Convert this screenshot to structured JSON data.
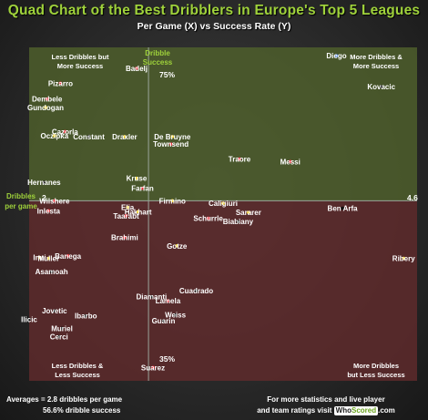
{
  "header": {
    "title": "Quad Chart of the Best Dribblers in Europe's Top 5 Leagues",
    "subtitle": "Per Game (X) vs Success Rate (Y)"
  },
  "quadrants": {
    "top_left": [
      "Less Dribbles but",
      "More Success"
    ],
    "top_right": [
      "More Dribbles &",
      "More Success"
    ],
    "bottom_left": [
      "Less Dribbles &",
      "Less Success"
    ],
    "bottom_right": [
      "More Dribbles",
      "but Less Success"
    ]
  },
  "axes": {
    "y_label": [
      "Dribble",
      "Success"
    ],
    "x_label": [
      "Dribbles",
      "per game"
    ],
    "y_max_label": "75%",
    "y_min_label": "35%",
    "x_min_label": "2",
    "x_max_label": "4.6"
  },
  "footer": {
    "averages_line1": "Averages = 2.8 dribbles per game",
    "averages_line2": "56.6% dribble success",
    "promo_line1": "For more statistics and live player",
    "promo_line2": "and team ratings visit",
    "brand_who": "Who",
    "brand_scored": "Scored",
    "brand_tld": ".com"
  },
  "colors": {
    "top_quadrant": "#4e5e2c",
    "bottom_quadrant": "#5e2a2c",
    "accent_green": "#9fd23b",
    "point_red": "#e8303a",
    "point_yellow": "#f3d22a",
    "point_blue": "#3c78e0",
    "point_black": "#111111"
  },
  "chart_data": {
    "type": "scatter",
    "title": "Quad Chart of the Best Dribblers in Europe's Top 5 Leagues",
    "subtitle": "Per Game (X) vs Success Rate (Y)",
    "xlabel": "Dribbles per game",
    "ylabel": "Dribble Success",
    "xlim": [
      2,
      4.6
    ],
    "ylim": [
      35,
      75
    ],
    "average_x": 2.8,
    "average_y": 56.6,
    "points": [
      {
        "name": "Badelj",
        "x": 2.72,
        "y": 72.5,
        "color": "point_red"
      },
      {
        "name": "Diego",
        "x": 4.06,
        "y": 74.0,
        "color": "point_blue"
      },
      {
        "name": "Kovacic",
        "x": 4.36,
        "y": 70.3,
        "color": "point_black"
      },
      {
        "name": "Pizarro",
        "x": 2.21,
        "y": 70.7,
        "color": "point_red"
      },
      {
        "name": "Dembele",
        "x": 2.12,
        "y": 68.8,
        "color": "point_red"
      },
      {
        "name": "Gundogan",
        "x": 2.11,
        "y": 67.8,
        "color": "point_yellow"
      },
      {
        "name": "Cazorla",
        "x": 2.24,
        "y": 64.9,
        "color": "point_red"
      },
      {
        "name": "Oczipka",
        "x": 2.17,
        "y": 64.4,
        "color": "point_yellow"
      },
      {
        "name": "Constant",
        "x": 2.4,
        "y": 64.3,
        "color": "point_black"
      },
      {
        "name": "Draxler",
        "x": 2.64,
        "y": 64.3,
        "color": "point_yellow"
      },
      {
        "name": "De Bruyne",
        "x": 2.96,
        "y": 64.3,
        "color": "point_yellow"
      },
      {
        "name": "Townsend",
        "x": 2.95,
        "y": 63.4,
        "color": "point_red"
      },
      {
        "name": "Traore",
        "x": 3.41,
        "y": 61.6,
        "color": "point_red"
      },
      {
        "name": "Messi",
        "x": 3.75,
        "y": 61.3,
        "color": "point_red"
      },
      {
        "name": "Kruse",
        "x": 2.72,
        "y": 59.3,
        "color": "point_yellow"
      },
      {
        "name": "Hernanes",
        "x": 2.1,
        "y": 58.8,
        "color": "point_black"
      },
      {
        "name": "Farfan",
        "x": 2.76,
        "y": 58.1,
        "color": "point_red"
      },
      {
        "name": "Wilshere",
        "x": 2.17,
        "y": 56.6,
        "color": "point_red"
      },
      {
        "name": "Firmino",
        "x": 2.96,
        "y": 56.6,
        "color": "point_yellow"
      },
      {
        "name": "Caligiuri",
        "x": 3.3,
        "y": 56.3,
        "color": "point_yellow"
      },
      {
        "name": "Ben Arfa",
        "x": 4.1,
        "y": 55.7,
        "color": "point_black"
      },
      {
        "name": "Inlesta",
        "x": 2.13,
        "y": 55.4,
        "color": "point_red"
      },
      {
        "name": "Elia",
        "x": 2.66,
        "y": 55.8,
        "color": "point_yellow"
      },
      {
        "name": "Hakhart",
        "x": 2.73,
        "y": 55.3,
        "color": "point_yellow"
      },
      {
        "name": "Taarabt",
        "x": 2.65,
        "y": 54.8,
        "color": "point_red"
      },
      {
        "name": "Sararer",
        "x": 3.47,
        "y": 55.2,
        "color": "point_yellow"
      },
      {
        "name": "Schurrle",
        "x": 3.2,
        "y": 54.5,
        "color": "point_red"
      },
      {
        "name": "Biabiany",
        "x": 3.4,
        "y": 54.1,
        "color": "point_black"
      },
      {
        "name": "Brahimi",
        "x": 2.64,
        "y": 52.2,
        "color": "point_red"
      },
      {
        "name": "Gotze",
        "x": 2.99,
        "y": 51.2,
        "color": "point_yellow"
      },
      {
        "name": "Ribery",
        "x": 4.51,
        "y": 49.7,
        "color": "point_yellow"
      },
      {
        "name": "Inui",
        "x": 2.07,
        "y": 49.8,
        "color": "point_yellow"
      },
      {
        "name": "Muller",
        "x": 2.13,
        "y": 49.7,
        "color": "point_yellow"
      },
      {
        "name": "Banega",
        "x": 2.26,
        "y": 50.0,
        "color": "point_red"
      },
      {
        "name": "Asamoah",
        "x": 2.15,
        "y": 48.1,
        "color": "point_black"
      },
      {
        "name": "Cuadrado",
        "x": 3.12,
        "y": 45.8,
        "color": "point_black"
      },
      {
        "name": "Diamanti",
        "x": 2.82,
        "y": 45.1,
        "color": "point_black"
      },
      {
        "name": "Lamela",
        "x": 2.93,
        "y": 44.6,
        "color": "point_red"
      },
      {
        "name": "Jovetic",
        "x": 2.17,
        "y": 43.4,
        "color": "point_black"
      },
      {
        "name": "Weiss",
        "x": 2.98,
        "y": 42.9,
        "color": "point_black"
      },
      {
        "name": "Ibarbo",
        "x": 2.38,
        "y": 42.8,
        "color": "point_black"
      },
      {
        "name": "Ilicic",
        "x": 2.0,
        "y": 42.4,
        "color": "point_black"
      },
      {
        "name": "Guarin",
        "x": 2.9,
        "y": 42.2,
        "color": "point_black"
      },
      {
        "name": "Muriel",
        "x": 2.22,
        "y": 41.3,
        "color": "point_black"
      },
      {
        "name": "Cerci",
        "x": 2.2,
        "y": 40.3,
        "color": "point_black"
      },
      {
        "name": "Suarez",
        "x": 2.83,
        "y": 36.6,
        "color": "point_red"
      }
    ]
  }
}
